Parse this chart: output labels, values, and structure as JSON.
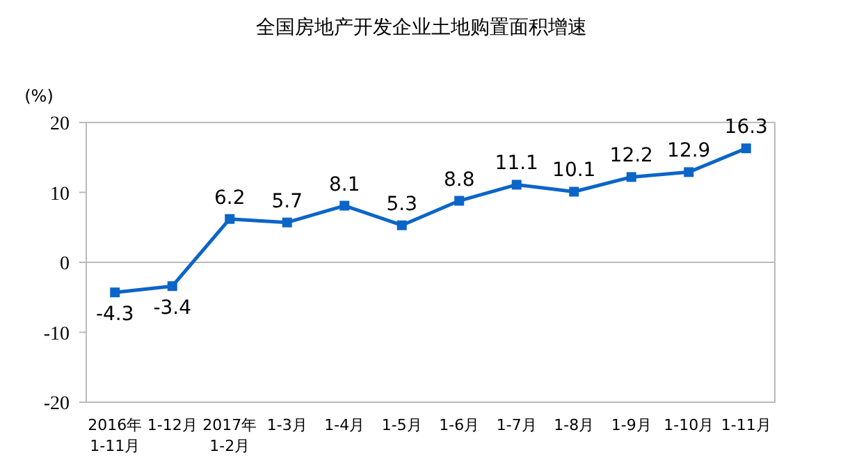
{
  "chart_data": {
    "type": "line",
    "title": "全国房地产开发企业土地购置面积增速",
    "ylabel": "(%)",
    "categories": [
      "2016年\n1-11月",
      "1-12月",
      "2017年\n1-2月",
      "1-3月",
      "1-4月",
      "1-5月",
      "1-6月",
      "1-7月",
      "1-8月",
      "1-9月",
      "1-10月",
      "1-11月"
    ],
    "values": [
      -4.3,
      -3.4,
      6.2,
      5.7,
      8.1,
      5.3,
      8.8,
      11.1,
      10.1,
      12.2,
      12.9,
      16.3
    ],
    "color": "#0b65c8",
    "ylim": [
      -20,
      20
    ],
    "yticks": [
      -20,
      -10,
      0,
      10,
      20
    ],
    "data_labels": true,
    "marker": "square",
    "line_style": "solid"
  }
}
